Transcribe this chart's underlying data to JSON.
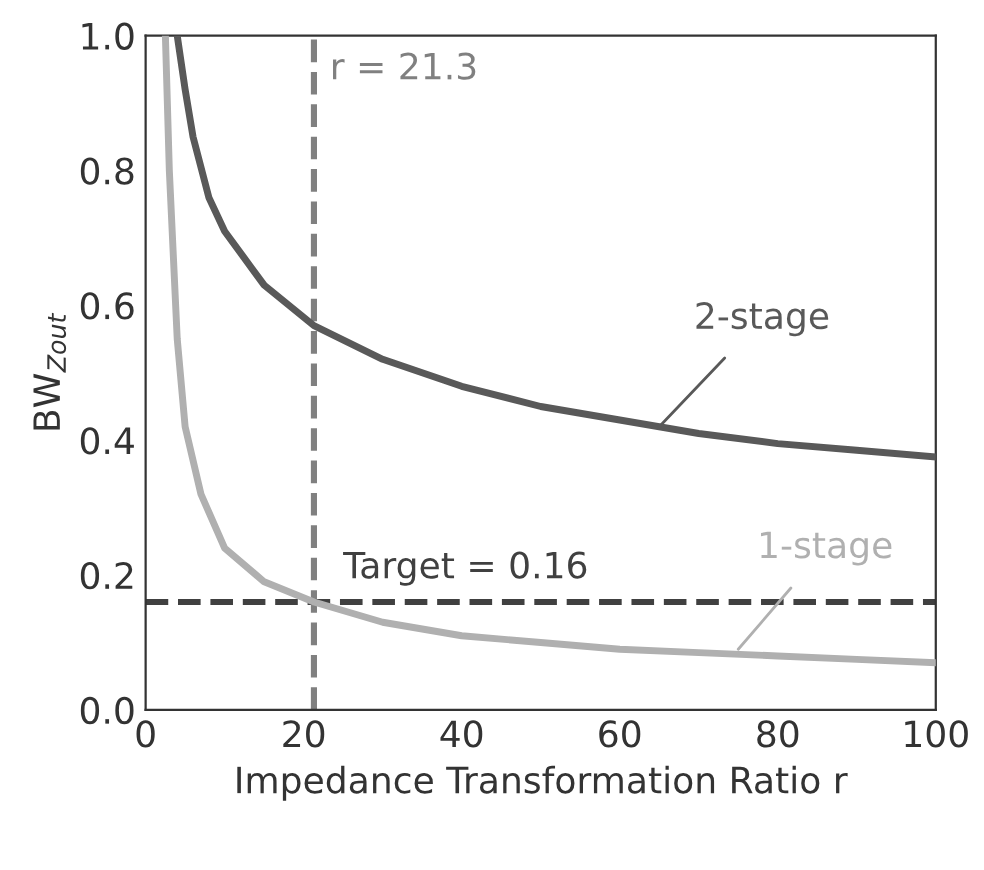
{
  "chart_data": {
    "type": "line",
    "xlabel": "Impedance Transformation Ratio r",
    "ylabel": "BW$_{Zout}$",
    "xlim": [
      0,
      100
    ],
    "xticks": [
      0,
      20,
      40,
      60,
      80,
      100
    ],
    "ylim": [
      0,
      1.0
    ],
    "yticks": [
      {
        "value": 0,
        "label": "0.0"
      },
      0.2,
      0.4,
      0.6,
      0.8,
      {
        "value": 1,
        "label": "1.0"
      }
    ],
    "grid": false,
    "legend": false,
    "marker": "none",
    "line_style": "solid",
    "series": [
      {
        "name": "2-stage",
        "color": "#595959",
        "x": [
          4,
          5,
          6,
          8,
          10,
          15,
          21.3,
          30,
          40,
          50,
          60,
          70,
          80,
          90,
          100
        ],
        "values": [
          1.0,
          0.92,
          0.85,
          0.76,
          0.71,
          0.63,
          0.57,
          0.52,
          0.48,
          0.45,
          0.43,
          0.41,
          0.395,
          0.385,
          0.375
        ]
      },
      {
        "name": "1-stage",
        "color": "#b0b0b0",
        "x": [
          2.5,
          3,
          4,
          5,
          7,
          10,
          15,
          21.3,
          30,
          40,
          50,
          60,
          70,
          80,
          90,
          100
        ],
        "values": [
          1.0,
          0.8,
          0.55,
          0.42,
          0.32,
          0.24,
          0.19,
          0.16,
          0.13,
          0.11,
          0.1,
          0.09,
          0.085,
          0.08,
          0.075,
          0.07
        ]
      }
    ],
    "ref_lines": [
      {
        "axis": "x",
        "value": 21.3,
        "label": "r = 21.3",
        "color": "#808080",
        "line_style": "dashed"
      },
      {
        "axis": "y",
        "value": 0.16,
        "label": "Target = 0.16",
        "color": "#404040",
        "line_style": "dashed"
      }
    ]
  }
}
